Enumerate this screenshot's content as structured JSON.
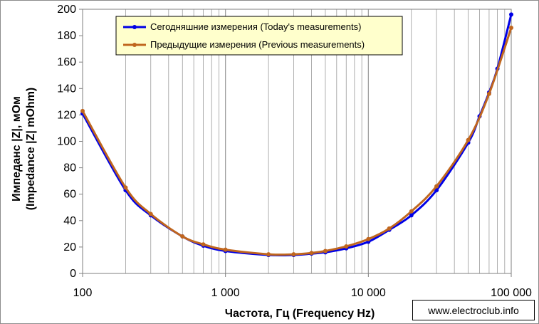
{
  "chart_data": {
    "type": "line",
    "xscale": "log",
    "xlim": [
      100,
      100000
    ],
    "ylim": [
      0,
      200
    ],
    "x_ticks": [
      100,
      1000,
      10000,
      100000
    ],
    "x_tick_labels": [
      "100",
      "1 000",
      "10 000",
      "100 000"
    ],
    "y_ticks": [
      0,
      20,
      40,
      60,
      80,
      100,
      120,
      140,
      160,
      180,
      200
    ],
    "y_tick_labels": [
      "0",
      "20",
      "40",
      "60",
      "80",
      "100",
      "120",
      "140",
      "160",
      "180",
      "200"
    ],
    "xlabel": "Частота, Гц (Frequency Hz)",
    "ylabel_line1": "Импеданс |Z|, мОм",
    "ylabel_line2": "(Impedance |Z| mOhm)",
    "grid": "vertical minor and major log gridlines",
    "legend_position": "top-left inside plot",
    "series": [
      {
        "name": "Сегодняшние измерения (Today's measurements)",
        "color": "#0000e6",
        "points": [
          [
            100,
            121
          ],
          [
            200,
            63
          ],
          [
            300,
            44
          ],
          [
            500,
            28
          ],
          [
            700,
            21
          ],
          [
            1000,
            17
          ],
          [
            2000,
            14
          ],
          [
            3000,
            14
          ],
          [
            4000,
            15
          ],
          [
            5000,
            16
          ],
          [
            7000,
            19
          ],
          [
            10000,
            24
          ],
          [
            14000,
            33
          ],
          [
            20000,
            44
          ],
          [
            30000,
            63
          ],
          [
            50000,
            99
          ],
          [
            60000,
            119
          ],
          [
            70000,
            137
          ],
          [
            80000,
            155
          ],
          [
            100000,
            196
          ]
        ]
      },
      {
        "name": "Предыдущие измерения (Previous measurements)",
        "color": "#c0661e",
        "points": [
          [
            100,
            123
          ],
          [
            200,
            65
          ],
          [
            300,
            45
          ],
          [
            500,
            28
          ],
          [
            700,
            22
          ],
          [
            1000,
            18
          ],
          [
            2000,
            14.5
          ],
          [
            3000,
            14.5
          ],
          [
            4000,
            15.5
          ],
          [
            5000,
            17
          ],
          [
            7000,
            20.5
          ],
          [
            10000,
            26
          ],
          [
            14000,
            34
          ],
          [
            20000,
            47
          ],
          [
            30000,
            66
          ],
          [
            50000,
            101
          ],
          [
            70000,
            136
          ],
          [
            100000,
            186
          ]
        ]
      }
    ]
  },
  "watermark": "www.electroclub.info"
}
